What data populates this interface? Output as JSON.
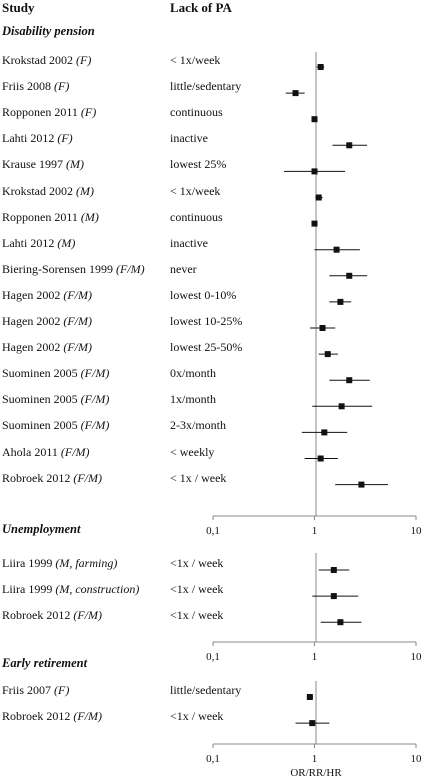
{
  "header": {
    "study": "Study",
    "exposure": "Lack of PA"
  },
  "x_axis_label": "OR/RR/HR",
  "chart_data": {
    "type": "forest",
    "scale": "log",
    "xlim": [
      0.1,
      10
    ],
    "xticks": [
      "0,1",
      "1",
      "10"
    ],
    "reference_line": 1,
    "xlabel": "OR/RR/HR",
    "panels": [
      {
        "title": "Disability pension",
        "rows": [
          {
            "study": "Krokstad 2002",
            "group": "(F)",
            "exposure": "< 1x/week",
            "est": 1.15,
            "lo": 1.05,
            "hi": 1.25
          },
          {
            "study": "Friis 2008",
            "group": "(F)",
            "exposure": "little/sedentary",
            "est": 0.65,
            "lo": 0.52,
            "hi": 0.8
          },
          {
            "study": "Ropponen 2011",
            "group": "(F)",
            "exposure": "continuous",
            "est": 1.0,
            "lo": 0.98,
            "hi": 1.02
          },
          {
            "study": "Lahti 2012",
            "group": "(F)",
            "exposure": "inactive",
            "est": 2.2,
            "lo": 1.5,
            "hi": 3.3
          },
          {
            "study": "Krause 1997",
            "group": "(M)",
            "exposure": "lowest 25%",
            "est": 1.0,
            "lo": 0.5,
            "hi": 2.0
          },
          {
            "study": "Krokstad 2002",
            "group": "(M)",
            "exposure": "< 1x/week",
            "est": 1.1,
            "lo": 1.02,
            "hi": 1.2
          },
          {
            "study": "Ropponen 2011",
            "group": "(M)",
            "exposure": "continuous",
            "est": 1.0,
            "lo": 0.98,
            "hi": 1.02
          },
          {
            "study": "Lahti 2012",
            "group": "(M)",
            "exposure": "inactive",
            "est": 1.65,
            "lo": 1.0,
            "hi": 2.8
          },
          {
            "study": "Biering-Sorensen 1999",
            "group": "(F/M)",
            "exposure": "never",
            "est": 2.2,
            "lo": 1.4,
            "hi": 3.3
          },
          {
            "study": "Hagen 2002",
            "group": "(F/M)",
            "exposure": "lowest 0-10%",
            "est": 1.8,
            "lo": 1.4,
            "hi": 2.3
          },
          {
            "study": "Hagen 2002",
            "group": "(F/M)",
            "exposure": "lowest 10-25%",
            "est": 1.2,
            "lo": 0.9,
            "hi": 1.6
          },
          {
            "study": "Hagen 2002",
            "group": "(F/M)",
            "exposure": "lowest 25-50%",
            "est": 1.35,
            "lo": 1.1,
            "hi": 1.7
          },
          {
            "study": "Suominen 2005",
            "group": "(F/M)",
            "exposure": "0x/month",
            "est": 2.2,
            "lo": 1.4,
            "hi": 3.5
          },
          {
            "study": "Suominen 2005",
            "group": "(F/M)",
            "exposure": "1x/month",
            "est": 1.85,
            "lo": 0.95,
            "hi": 3.7
          },
          {
            "study": "Suominen 2005",
            "group": "(F/M)",
            "exposure": "2-3x/month",
            "est": 1.25,
            "lo": 0.75,
            "hi": 2.1
          },
          {
            "study": "Ahola 2011",
            "group": "(F/M)",
            "exposure": "< weekly",
            "est": 1.15,
            "lo": 0.8,
            "hi": 1.7
          },
          {
            "study": "Robroek 2012",
            "group": "(F/M)",
            "exposure": "< 1x / week",
            "est": 2.9,
            "lo": 1.6,
            "hi": 5.3
          }
        ]
      },
      {
        "title": "Unemployment",
        "rows": [
          {
            "study": "Liira 1999",
            "group": "(M, farming)",
            "exposure": "<1x / week",
            "est": 1.55,
            "lo": 1.1,
            "hi": 2.2
          },
          {
            "study": "Liira 1999",
            "group": "(M, construction)",
            "exposure": "<1x / week",
            "est": 1.55,
            "lo": 0.95,
            "hi": 2.7
          },
          {
            "study": "Robroek 2012",
            "group": "(F/M)",
            "exposure": "<1x / week",
            "est": 1.8,
            "lo": 1.15,
            "hi": 2.9
          }
        ]
      },
      {
        "title": "Early retirement",
        "rows": [
          {
            "study": "Friis 2007",
            "group": "(F)",
            "exposure": "little/sedentary",
            "est": 0.9,
            "lo": 0.84,
            "hi": 0.97
          },
          {
            "study": "Robroek 2012",
            "group": "(F/M)",
            "exposure": "<1x / week",
            "est": 0.95,
            "lo": 0.65,
            "hi": 1.4
          }
        ]
      }
    ]
  }
}
